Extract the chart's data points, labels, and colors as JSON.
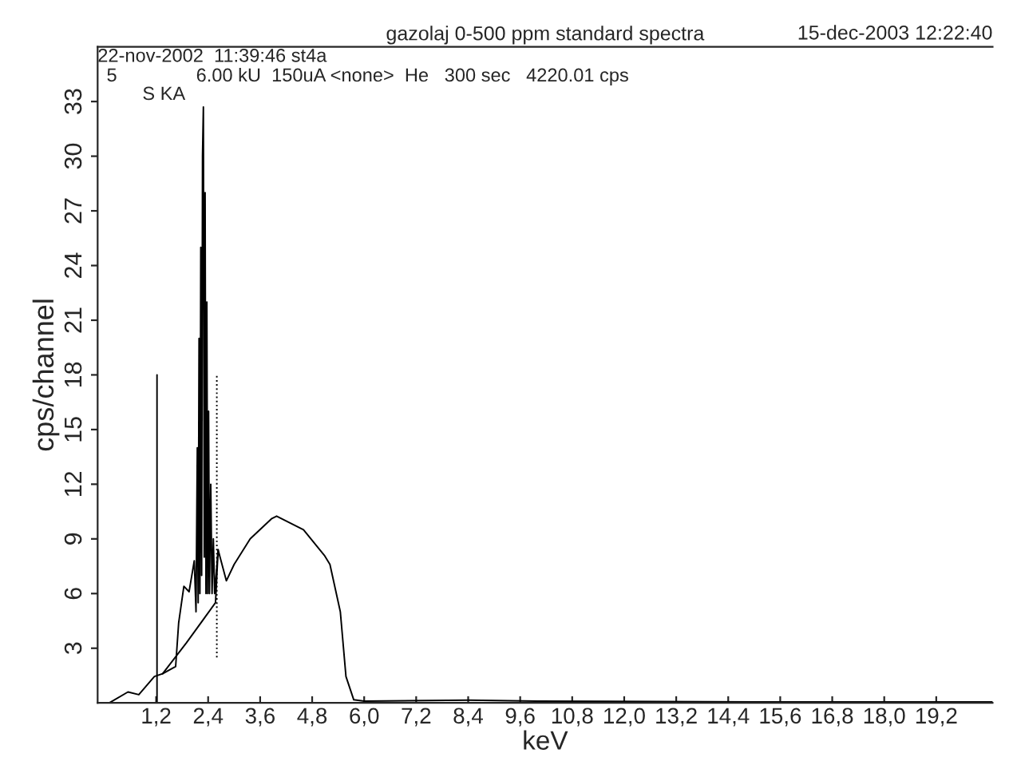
{
  "chart_data": {
    "type": "line",
    "title": "gazolaj 0-500 ppm standard spectra",
    "xlabel": "keV",
    "ylabel": "cps/channel",
    "annotations": [
      "15-dec-2003 12:22:40",
      "22-nov-2002  11:39:46 st4a",
      "5",
      "6.00 kU  150uA <none>  He   300 sec   4220.01 cps",
      "S KA"
    ],
    "series": [
      {
        "color": "#000000",
        "x": [
          0.12,
          0.55,
          0.8,
          1.16,
          1.35,
          1.65,
          1.72,
          1.84,
          1.96,
          2.08,
          2.12,
          2.15,
          2.17,
          2.19,
          2.21,
          2.23,
          2.25,
          2.27,
          2.29,
          2.31,
          2.33,
          2.35,
          2.37,
          2.39,
          2.41,
          2.43,
          2.46,
          2.49,
          2.52,
          2.55,
          2.63,
          2.82,
          3.0,
          3.37,
          3.86,
          3.98,
          4.6,
          5.08,
          5.21,
          5.45,
          5.58,
          5.76,
          6.0,
          8.4,
          10.0,
          15.0,
          20.5
        ],
        "values": [
          0.0,
          0.6,
          0.45,
          1.45,
          1.6,
          2.0,
          4.4,
          6.4,
          6.1,
          7.8,
          5.0,
          14,
          5.5,
          20,
          6.0,
          25,
          7.0,
          30,
          32.7,
          8.0,
          28,
          6.0,
          22,
          6.0,
          16,
          6.0,
          12,
          6.0,
          9.0,
          6.0,
          8.4,
          6.7,
          7.6,
          9.0,
          10.1,
          10.25,
          9.5,
          8.1,
          7.6,
          5.0,
          1.45,
          0.17,
          0.1,
          0.15,
          0.1,
          0.05,
          0.05
        ]
      },
      {
        "color": "#000000",
        "x": [
          1.35,
          1.9,
          2.57,
          2.63
        ],
        "values": [
          1.6,
          3.3,
          5.5,
          8.4
        ]
      },
      {
        "color": "#000000",
        "x": [
          1.22,
          1.22
        ],
        "values": [
          0,
          18
        ],
        "line_style": "solid"
      },
      {
        "color": "#000000",
        "x": [
          2.6,
          2.6
        ],
        "values": [
          2.5,
          18
        ],
        "line_style": "dotted"
      }
    ],
    "xlim": [
      -0.15,
      20.5
    ],
    "ylim": [
      0,
      36
    ],
    "xticks": [
      {
        "value": 1.2,
        "label": "1,2"
      },
      {
        "value": 2.4,
        "label": "2,4"
      },
      {
        "value": 3.6,
        "label": "3,6"
      },
      {
        "value": 4.8,
        "label": "4,8"
      },
      {
        "value": 6.0,
        "label": "6,0"
      },
      {
        "value": 7.2,
        "label": "7,2"
      },
      {
        "value": 8.4,
        "label": "8,4"
      },
      {
        "value": 9.6,
        "label": "9,6"
      },
      {
        "value": 10.8,
        "label": "10,8"
      },
      {
        "value": 12.0,
        "label": "12,0"
      },
      {
        "value": 13.2,
        "label": "13,2"
      },
      {
        "value": 14.4,
        "label": "14,4"
      },
      {
        "value": 15.6,
        "label": "15,6"
      },
      {
        "value": 16.8,
        "label": "16,8"
      },
      {
        "value": 18.0,
        "label": "18,0"
      },
      {
        "value": 19.2,
        "label": "19,2"
      }
    ],
    "yticks": [
      3,
      6,
      9,
      12,
      15,
      18,
      21,
      24,
      27,
      30,
      33
    ],
    "grid": false,
    "legend": false
  }
}
